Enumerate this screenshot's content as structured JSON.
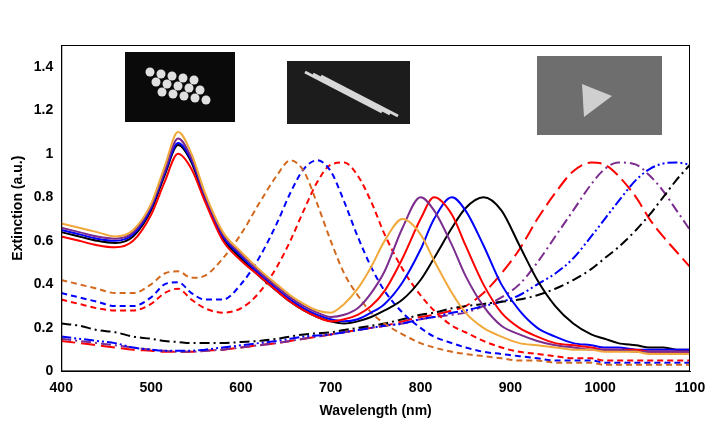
{
  "chart_data": {
    "type": "line",
    "x_label": "Wavelength (nm)",
    "y_label": "Extinction (a.u.)",
    "x": [
      400,
      420,
      440,
      460,
      480,
      500,
      515,
      530,
      545,
      560,
      580,
      600,
      620,
      640,
      655,
      670,
      685,
      700,
      715,
      730,
      745,
      760,
      780,
      800,
      815,
      835,
      850,
      870,
      890,
      910,
      930,
      950,
      970,
      990,
      1005,
      1020,
      1040,
      1055,
      1070,
      1085,
      1100
    ],
    "xlim": [
      400,
      1100
    ],
    "xticks": [
      400,
      500,
      600,
      700,
      800,
      900,
      1000,
      1100
    ],
    "ylim": [
      0,
      1.5
    ],
    "yticks": [
      0,
      0.2,
      0.4,
      0.6,
      0.8,
      1,
      1.2,
      1.4
    ],
    "grid": false,
    "series": [
      {
        "color": "#f2a93b",
        "line_style": "solid",
        "values": [
          0.68,
          0.66,
          0.64,
          0.62,
          0.65,
          0.77,
          0.94,
          1.1,
          1.0,
          0.82,
          0.64,
          0.55,
          0.47,
          0.4,
          0.35,
          0.31,
          0.28,
          0.27,
          0.31,
          0.38,
          0.48,
          0.6,
          0.7,
          0.63,
          0.51,
          0.36,
          0.27,
          0.2,
          0.16,
          0.13,
          0.12,
          0.11,
          0.1,
          0.1,
          0.09,
          0.09,
          0.09,
          0.08,
          0.08,
          0.08,
          0.08
        ]
      },
      {
        "color": "#7b2c8f",
        "line_style": "solid",
        "values": [
          0.66,
          0.64,
          0.62,
          0.61,
          0.64,
          0.76,
          0.92,
          1.07,
          0.98,
          0.81,
          0.63,
          0.54,
          0.46,
          0.39,
          0.34,
          0.3,
          0.27,
          0.25,
          0.26,
          0.29,
          0.36,
          0.46,
          0.66,
          0.8,
          0.74,
          0.58,
          0.44,
          0.3,
          0.21,
          0.17,
          0.14,
          0.12,
          0.11,
          0.1,
          0.1,
          0.1,
          0.09,
          0.09,
          0.09,
          0.09,
          0.09
        ]
      },
      {
        "color": "#ff0000",
        "line_style": "solid",
        "values": [
          0.62,
          0.6,
          0.58,
          0.57,
          0.6,
          0.72,
          0.87,
          1.0,
          0.93,
          0.78,
          0.6,
          0.51,
          0.44,
          0.37,
          0.32,
          0.28,
          0.25,
          0.23,
          0.24,
          0.26,
          0.3,
          0.37,
          0.52,
          0.7,
          0.8,
          0.72,
          0.58,
          0.4,
          0.27,
          0.2,
          0.16,
          0.13,
          0.12,
          0.11,
          0.1,
          0.1,
          0.1,
          0.09,
          0.09,
          0.09,
          0.09
        ]
      },
      {
        "color": "#0000ff",
        "line_style": "solid",
        "values": [
          0.65,
          0.63,
          0.61,
          0.6,
          0.63,
          0.75,
          0.91,
          1.05,
          0.97,
          0.8,
          0.62,
          0.53,
          0.45,
          0.38,
          0.33,
          0.29,
          0.26,
          0.24,
          0.23,
          0.24,
          0.27,
          0.31,
          0.41,
          0.56,
          0.7,
          0.8,
          0.74,
          0.58,
          0.4,
          0.28,
          0.2,
          0.16,
          0.13,
          0.12,
          0.11,
          0.11,
          0.1,
          0.1,
          0.1,
          0.1,
          0.1
        ]
      },
      {
        "color": "#000000",
        "line_style": "solid",
        "values": [
          0.64,
          0.62,
          0.6,
          0.59,
          0.62,
          0.74,
          0.9,
          1.04,
          0.96,
          0.79,
          0.61,
          0.52,
          0.44,
          0.37,
          0.32,
          0.28,
          0.25,
          0.23,
          0.22,
          0.23,
          0.25,
          0.28,
          0.33,
          0.42,
          0.52,
          0.66,
          0.75,
          0.8,
          0.74,
          0.58,
          0.42,
          0.3,
          0.22,
          0.17,
          0.15,
          0.13,
          0.12,
          0.11,
          0.11,
          0.1,
          0.1
        ]
      },
      {
        "color": "#d2691e",
        "line_style": "dashed",
        "values": [
          0.42,
          0.4,
          0.38,
          0.36,
          0.36,
          0.4,
          0.45,
          0.46,
          0.43,
          0.44,
          0.52,
          0.63,
          0.77,
          0.9,
          0.97,
          0.92,
          0.77,
          0.6,
          0.45,
          0.35,
          0.27,
          0.22,
          0.17,
          0.13,
          0.11,
          0.09,
          0.08,
          0.07,
          0.06,
          0.05,
          0.05,
          0.04,
          0.04,
          0.04,
          0.03,
          0.03,
          0.03,
          0.03,
          0.03,
          0.03,
          0.03
        ]
      },
      {
        "color": "#0000ff",
        "line_style": "dashed",
        "values": [
          0.36,
          0.34,
          0.32,
          0.3,
          0.3,
          0.34,
          0.4,
          0.41,
          0.36,
          0.33,
          0.33,
          0.4,
          0.52,
          0.68,
          0.82,
          0.93,
          0.97,
          0.92,
          0.78,
          0.62,
          0.48,
          0.37,
          0.27,
          0.2,
          0.16,
          0.13,
          0.11,
          0.09,
          0.08,
          0.07,
          0.06,
          0.05,
          0.05,
          0.05,
          0.04,
          0.04,
          0.04,
          0.04,
          0.04,
          0.04,
          0.04
        ]
      },
      {
        "color": "#ff0000",
        "line_style": "dashed",
        "values": [
          0.33,
          0.31,
          0.29,
          0.28,
          0.28,
          0.31,
          0.36,
          0.38,
          0.33,
          0.29,
          0.27,
          0.29,
          0.36,
          0.48,
          0.6,
          0.74,
          0.87,
          0.95,
          0.96,
          0.9,
          0.78,
          0.63,
          0.47,
          0.35,
          0.28,
          0.21,
          0.18,
          0.14,
          0.11,
          0.09,
          0.08,
          0.07,
          0.06,
          0.06,
          0.05,
          0.05,
          0.05,
          0.05,
          0.05,
          0.05,
          0.05
        ]
      },
      {
        "color": "#000000",
        "line_style": "dashdot",
        "values": [
          0.22,
          0.21,
          0.19,
          0.18,
          0.16,
          0.15,
          0.14,
          0.135,
          0.13,
          0.13,
          0.13,
          0.135,
          0.14,
          0.15,
          0.16,
          0.17,
          0.175,
          0.18,
          0.19,
          0.2,
          0.21,
          0.22,
          0.24,
          0.26,
          0.27,
          0.29,
          0.3,
          0.31,
          0.32,
          0.33,
          0.35,
          0.38,
          0.42,
          0.47,
          0.52,
          0.57,
          0.65,
          0.72,
          0.8,
          0.88,
          0.95
        ]
      },
      {
        "color": "#0000ff",
        "line_style": "dashdotdot",
        "values": [
          0.16,
          0.15,
          0.14,
          0.13,
          0.11,
          0.1,
          0.095,
          0.095,
          0.095,
          0.1,
          0.11,
          0.12,
          0.13,
          0.14,
          0.15,
          0.16,
          0.165,
          0.17,
          0.18,
          0.19,
          0.2,
          0.21,
          0.22,
          0.24,
          0.25,
          0.27,
          0.28,
          0.3,
          0.32,
          0.35,
          0.4,
          0.45,
          0.52,
          0.62,
          0.7,
          0.78,
          0.88,
          0.93,
          0.955,
          0.96,
          0.95
        ]
      },
      {
        "color": "#7b2c8f",
        "line_style": "dashdot",
        "values": [
          0.15,
          0.14,
          0.13,
          0.12,
          0.11,
          0.1,
          0.095,
          0.09,
          0.09,
          0.095,
          0.1,
          0.11,
          0.12,
          0.13,
          0.14,
          0.15,
          0.16,
          0.17,
          0.18,
          0.19,
          0.2,
          0.21,
          0.22,
          0.24,
          0.25,
          0.26,
          0.27,
          0.3,
          0.34,
          0.4,
          0.5,
          0.62,
          0.74,
          0.86,
          0.93,
          0.96,
          0.95,
          0.9,
          0.83,
          0.74,
          0.65
        ]
      },
      {
        "color": "#ff0000",
        "line_style": "longdash",
        "values": [
          0.14,
          0.13,
          0.12,
          0.11,
          0.1,
          0.095,
          0.09,
          0.09,
          0.09,
          0.095,
          0.1,
          0.11,
          0.12,
          0.13,
          0.14,
          0.15,
          0.16,
          0.17,
          0.18,
          0.19,
          0.2,
          0.21,
          0.23,
          0.25,
          0.26,
          0.28,
          0.3,
          0.36,
          0.45,
          0.56,
          0.7,
          0.82,
          0.92,
          0.96,
          0.95,
          0.9,
          0.8,
          0.7,
          0.62,
          0.55,
          0.48
        ]
      }
    ]
  }
}
